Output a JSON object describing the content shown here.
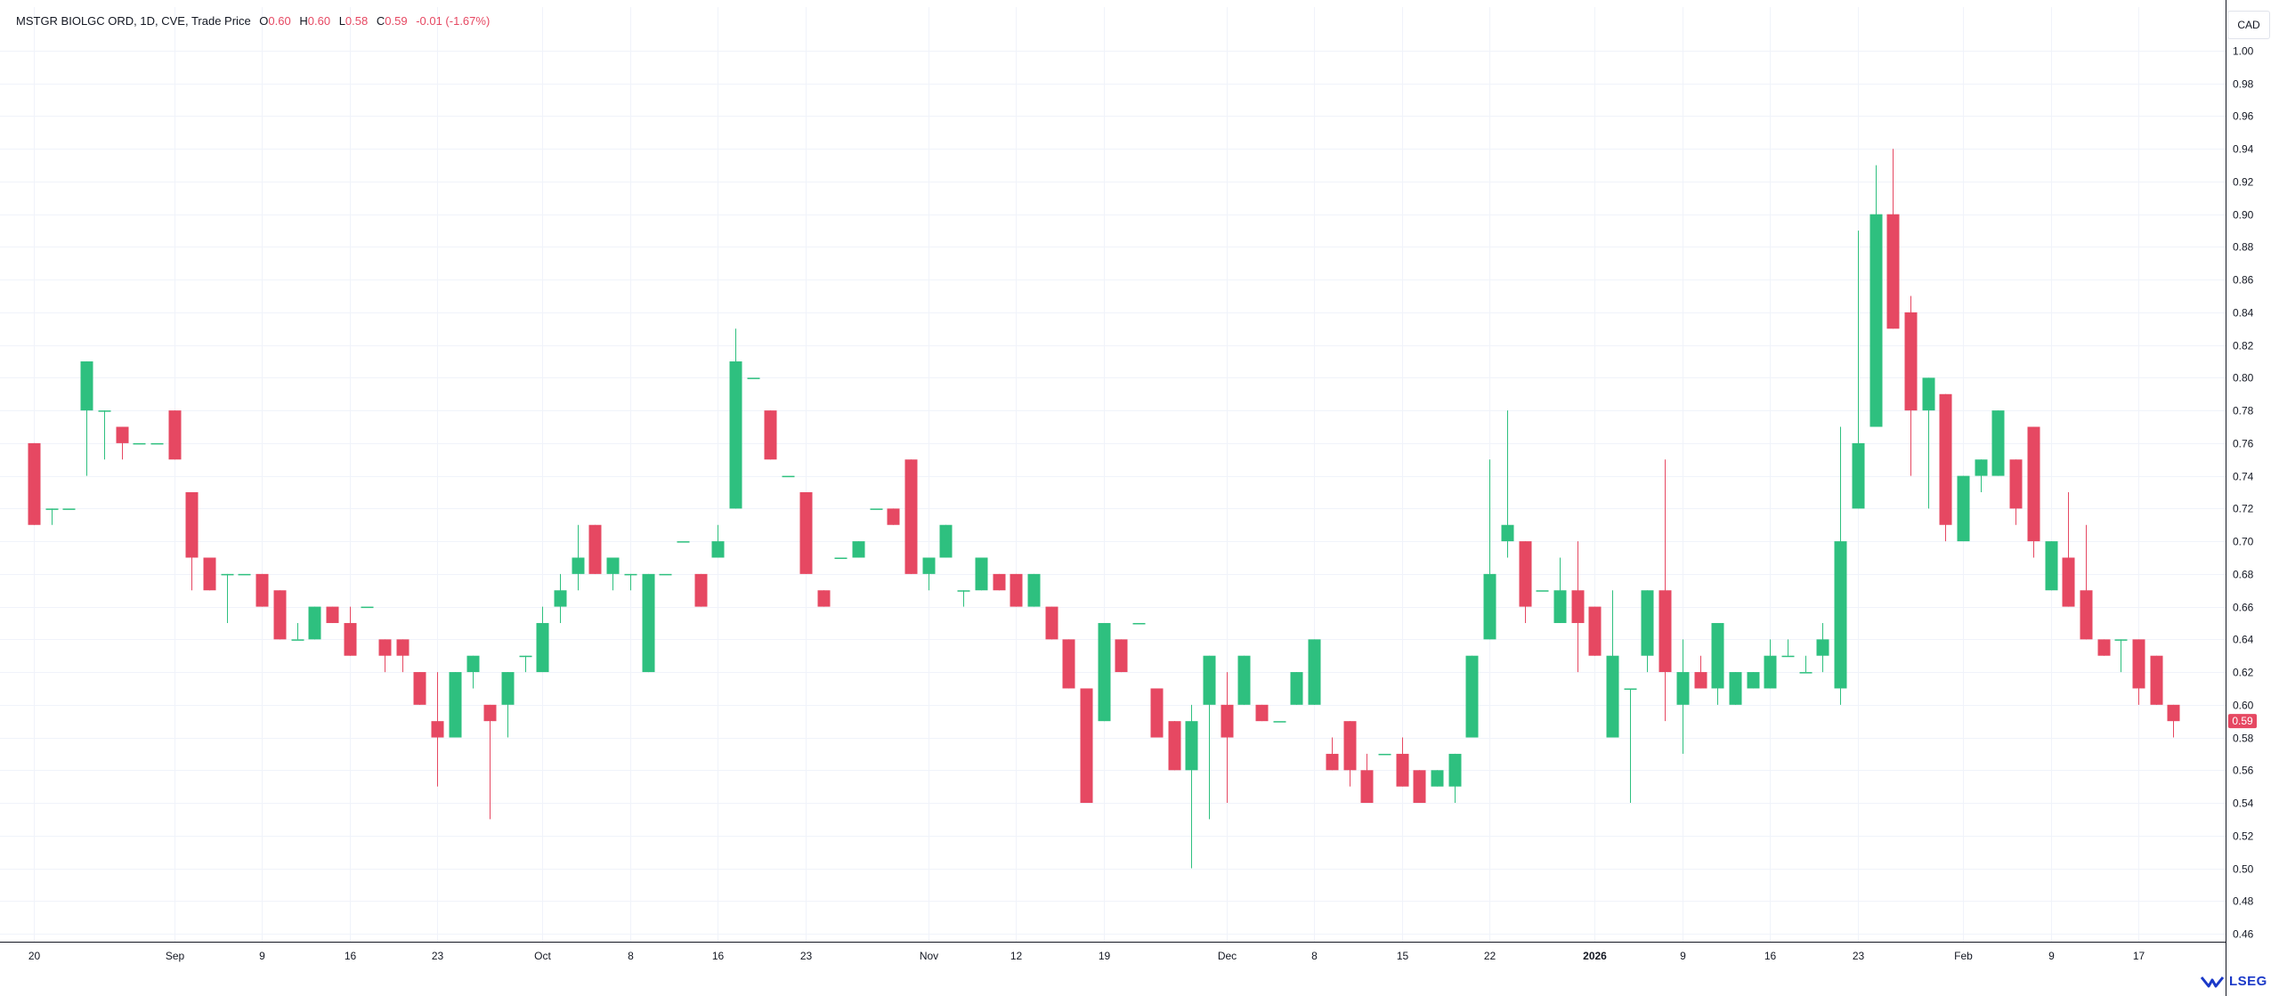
{
  "legend": {
    "symbol": "MSTGR BIOLGC ORD, 1D, CVE, Trade Price",
    "open_label": "O",
    "open": "0.60",
    "high_label": "H",
    "high": "0.60",
    "low_label": "L",
    "low": "0.58",
    "close_label": "C",
    "close": "0.59",
    "change": "-0.01 (-1.67%)"
  },
  "currency": "CAD",
  "brand": "LSEG",
  "last_price_label": "0.59",
  "colors": {
    "up": "#2ec07f",
    "down": "#e64862",
    "grid": "#f0f3fa",
    "axis": "#131722",
    "last": "#e64862"
  },
  "chart_data": {
    "type": "candlestick",
    "title": "MSTGR BIOLGC ORD, 1D, CVE, Trade Price",
    "ylim": [
      0.45,
      1.01
    ],
    "y_ticks": [
      "1.00",
      "0.98",
      "0.96",
      "0.94",
      "0.92",
      "0.90",
      "0.88",
      "0.86",
      "0.84",
      "0.82",
      "0.80",
      "0.78",
      "0.76",
      "0.74",
      "0.72",
      "0.70",
      "0.68",
      "0.66",
      "0.64",
      "0.62",
      "0.60",
      "0.58",
      "0.56",
      "0.54",
      "0.52",
      "0.50",
      "0.48",
      "0.46"
    ],
    "x_ticks": [
      {
        "label": "20",
        "bar": 0,
        "bold": false
      },
      {
        "label": "Sep",
        "bar": 8,
        "bold": false
      },
      {
        "label": "9",
        "bar": 13,
        "bold": false
      },
      {
        "label": "16",
        "bar": 18,
        "bold": false
      },
      {
        "label": "23",
        "bar": 23,
        "bold": false
      },
      {
        "label": "Oct",
        "bar": 29,
        "bold": false
      },
      {
        "label": "8",
        "bar": 34,
        "bold": false
      },
      {
        "label": "16",
        "bar": 39,
        "bold": false
      },
      {
        "label": "23",
        "bar": 44,
        "bold": false
      },
      {
        "label": "Nov",
        "bar": 51,
        "bold": false
      },
      {
        "label": "12",
        "bar": 56,
        "bold": false
      },
      {
        "label": "19",
        "bar": 61,
        "bold": false
      },
      {
        "label": "Dec",
        "bar": 68,
        "bold": false
      },
      {
        "label": "8",
        "bar": 73,
        "bold": false
      },
      {
        "label": "15",
        "bar": 78,
        "bold": false
      },
      {
        "label": "22",
        "bar": 83,
        "bold": false
      },
      {
        "label": "2026",
        "bar": 89,
        "bold": true
      },
      {
        "label": "9",
        "bar": 94,
        "bold": false
      },
      {
        "label": "16",
        "bar": 99,
        "bold": false
      },
      {
        "label": "23",
        "bar": 104,
        "bold": false
      },
      {
        "label": "Feb",
        "bar": 110,
        "bold": false
      },
      {
        "label": "9",
        "bar": 115,
        "bold": false
      },
      {
        "label": "17",
        "bar": 120,
        "bold": false
      }
    ],
    "candles": [
      {
        "o": 0.76,
        "h": 0.76,
        "l": 0.71,
        "c": 0.71
      },
      {
        "o": 0.72,
        "h": 0.72,
        "l": 0.71,
        "c": 0.72
      },
      {
        "o": 0.72,
        "h": 0.72,
        "l": 0.72,
        "c": 0.72
      },
      {
        "o": 0.78,
        "h": 0.81,
        "l": 0.74,
        "c": 0.81
      },
      {
        "o": 0.78,
        "h": 0.78,
        "l": 0.75,
        "c": 0.78
      },
      {
        "o": 0.77,
        "h": 0.77,
        "l": 0.75,
        "c": 0.76
      },
      {
        "o": 0.76,
        "h": 0.76,
        "l": 0.76,
        "c": 0.76
      },
      {
        "o": 0.76,
        "h": 0.76,
        "l": 0.76,
        "c": 0.76
      },
      {
        "o": 0.78,
        "h": 0.78,
        "l": 0.75,
        "c": 0.75
      },
      {
        "o": 0.73,
        "h": 0.73,
        "l": 0.67,
        "c": 0.69
      },
      {
        "o": 0.69,
        "h": 0.69,
        "l": 0.67,
        "c": 0.67
      },
      {
        "o": 0.68,
        "h": 0.68,
        "l": 0.65,
        "c": 0.68
      },
      {
        "o": 0.68,
        "h": 0.68,
        "l": 0.68,
        "c": 0.68
      },
      {
        "o": 0.68,
        "h": 0.68,
        "l": 0.66,
        "c": 0.66
      },
      {
        "o": 0.67,
        "h": 0.67,
        "l": 0.64,
        "c": 0.64
      },
      {
        "o": 0.64,
        "h": 0.65,
        "l": 0.64,
        "c": 0.64
      },
      {
        "o": 0.64,
        "h": 0.66,
        "l": 0.64,
        "c": 0.66
      },
      {
        "o": 0.66,
        "h": 0.66,
        "l": 0.65,
        "c": 0.65
      },
      {
        "o": 0.65,
        "h": 0.66,
        "l": 0.63,
        "c": 0.63
      },
      {
        "o": 0.66,
        "h": 0.66,
        "l": 0.66,
        "c": 0.66
      },
      {
        "o": 0.64,
        "h": 0.64,
        "l": 0.62,
        "c": 0.63
      },
      {
        "o": 0.64,
        "h": 0.64,
        "l": 0.62,
        "c": 0.63
      },
      {
        "o": 0.62,
        "h": 0.62,
        "l": 0.6,
        "c": 0.6
      },
      {
        "o": 0.59,
        "h": 0.62,
        "l": 0.55,
        "c": 0.58
      },
      {
        "o": 0.58,
        "h": 0.62,
        "l": 0.58,
        "c": 0.62
      },
      {
        "o": 0.62,
        "h": 0.63,
        "l": 0.61,
        "c": 0.63
      },
      {
        "o": 0.6,
        "h": 0.6,
        "l": 0.53,
        "c": 0.59
      },
      {
        "o": 0.6,
        "h": 0.62,
        "l": 0.58,
        "c": 0.62
      },
      {
        "o": 0.63,
        "h": 0.63,
        "l": 0.62,
        "c": 0.63
      },
      {
        "o": 0.62,
        "h": 0.66,
        "l": 0.62,
        "c": 0.65
      },
      {
        "o": 0.66,
        "h": 0.68,
        "l": 0.65,
        "c": 0.67
      },
      {
        "o": 0.68,
        "h": 0.71,
        "l": 0.67,
        "c": 0.69
      },
      {
        "o": 0.71,
        "h": 0.71,
        "l": 0.68,
        "c": 0.68
      },
      {
        "o": 0.68,
        "h": 0.69,
        "l": 0.67,
        "c": 0.69
      },
      {
        "o": 0.68,
        "h": 0.68,
        "l": 0.67,
        "c": 0.68
      },
      {
        "o": 0.62,
        "h": 0.68,
        "l": 0.62,
        "c": 0.68
      },
      {
        "o": 0.68,
        "h": 0.68,
        "l": 0.68,
        "c": 0.68
      },
      {
        "o": 0.7,
        "h": 0.7,
        "l": 0.7,
        "c": 0.7
      },
      {
        "o": 0.68,
        "h": 0.68,
        "l": 0.66,
        "c": 0.66
      },
      {
        "o": 0.69,
        "h": 0.71,
        "l": 0.69,
        "c": 0.7
      },
      {
        "o": 0.72,
        "h": 0.83,
        "l": 0.72,
        "c": 0.81
      },
      {
        "o": 0.8,
        "h": 0.8,
        "l": 0.8,
        "c": 0.8
      },
      {
        "o": 0.78,
        "h": 0.78,
        "l": 0.75,
        "c": 0.75
      },
      {
        "o": 0.74,
        "h": 0.74,
        "l": 0.74,
        "c": 0.74
      },
      {
        "o": 0.73,
        "h": 0.73,
        "l": 0.68,
        "c": 0.68
      },
      {
        "o": 0.67,
        "h": 0.67,
        "l": 0.66,
        "c": 0.66
      },
      {
        "o": 0.69,
        "h": 0.69,
        "l": 0.69,
        "c": 0.69
      },
      {
        "o": 0.69,
        "h": 0.7,
        "l": 0.69,
        "c": 0.7
      },
      {
        "o": 0.72,
        "h": 0.72,
        "l": 0.72,
        "c": 0.72
      },
      {
        "o": 0.72,
        "h": 0.72,
        "l": 0.71,
        "c": 0.71
      },
      {
        "o": 0.75,
        "h": 0.75,
        "l": 0.68,
        "c": 0.68
      },
      {
        "o": 0.68,
        "h": 0.69,
        "l": 0.67,
        "c": 0.69
      },
      {
        "o": 0.69,
        "h": 0.71,
        "l": 0.69,
        "c": 0.71
      },
      {
        "o": 0.67,
        "h": 0.67,
        "l": 0.66,
        "c": 0.67
      },
      {
        "o": 0.67,
        "h": 0.69,
        "l": 0.67,
        "c": 0.69
      },
      {
        "o": 0.68,
        "h": 0.68,
        "l": 0.67,
        "c": 0.67
      },
      {
        "o": 0.68,
        "h": 0.68,
        "l": 0.66,
        "c": 0.66
      },
      {
        "o": 0.66,
        "h": 0.68,
        "l": 0.66,
        "c": 0.68
      },
      {
        "o": 0.66,
        "h": 0.66,
        "l": 0.64,
        "c": 0.64
      },
      {
        "o": 0.64,
        "h": 0.64,
        "l": 0.61,
        "c": 0.61
      },
      {
        "o": 0.61,
        "h": 0.61,
        "l": 0.54,
        "c": 0.54
      },
      {
        "o": 0.59,
        "h": 0.65,
        "l": 0.59,
        "c": 0.65
      },
      {
        "o": 0.64,
        "h": 0.64,
        "l": 0.62,
        "c": 0.62
      },
      {
        "o": 0.65,
        "h": 0.65,
        "l": 0.65,
        "c": 0.65
      },
      {
        "o": 0.61,
        "h": 0.61,
        "l": 0.58,
        "c": 0.58
      },
      {
        "o": 0.59,
        "h": 0.59,
        "l": 0.56,
        "c": 0.56
      },
      {
        "o": 0.56,
        "h": 0.6,
        "l": 0.5,
        "c": 0.59
      },
      {
        "o": 0.6,
        "h": 0.63,
        "l": 0.53,
        "c": 0.63
      },
      {
        "o": 0.6,
        "h": 0.62,
        "l": 0.54,
        "c": 0.58
      },
      {
        "o": 0.6,
        "h": 0.63,
        "l": 0.6,
        "c": 0.63
      },
      {
        "o": 0.6,
        "h": 0.6,
        "l": 0.59,
        "c": 0.59
      },
      {
        "o": 0.59,
        "h": 0.59,
        "l": 0.59,
        "c": 0.59
      },
      {
        "o": 0.6,
        "h": 0.62,
        "l": 0.6,
        "c": 0.62
      },
      {
        "o": 0.6,
        "h": 0.64,
        "l": 0.6,
        "c": 0.64
      },
      {
        "o": 0.57,
        "h": 0.58,
        "l": 0.56,
        "c": 0.56
      },
      {
        "o": 0.59,
        "h": 0.59,
        "l": 0.55,
        "c": 0.56
      },
      {
        "o": 0.56,
        "h": 0.57,
        "l": 0.54,
        "c": 0.54
      },
      {
        "o": 0.57,
        "h": 0.57,
        "l": 0.57,
        "c": 0.57
      },
      {
        "o": 0.57,
        "h": 0.58,
        "l": 0.55,
        "c": 0.55
      },
      {
        "o": 0.56,
        "h": 0.56,
        "l": 0.54,
        "c": 0.54
      },
      {
        "o": 0.55,
        "h": 0.56,
        "l": 0.55,
        "c": 0.56
      },
      {
        "o": 0.55,
        "h": 0.57,
        "l": 0.54,
        "c": 0.57
      },
      {
        "o": 0.58,
        "h": 0.63,
        "l": 0.58,
        "c": 0.63
      },
      {
        "o": 0.64,
        "h": 0.75,
        "l": 0.64,
        "c": 0.68
      },
      {
        "o": 0.7,
        "h": 0.78,
        "l": 0.69,
        "c": 0.71
      },
      {
        "o": 0.7,
        "h": 0.7,
        "l": 0.65,
        "c": 0.66
      },
      {
        "o": 0.67,
        "h": 0.67,
        "l": 0.67,
        "c": 0.67
      },
      {
        "o": 0.65,
        "h": 0.69,
        "l": 0.65,
        "c": 0.67
      },
      {
        "o": 0.67,
        "h": 0.7,
        "l": 0.62,
        "c": 0.65
      },
      {
        "o": 0.66,
        "h": 0.66,
        "l": 0.63,
        "c": 0.63
      },
      {
        "o": 0.58,
        "h": 0.67,
        "l": 0.58,
        "c": 0.63
      },
      {
        "o": 0.61,
        "h": 0.61,
        "l": 0.54,
        "c": 0.61
      },
      {
        "o": 0.63,
        "h": 0.67,
        "l": 0.62,
        "c": 0.67
      },
      {
        "o": 0.67,
        "h": 0.75,
        "l": 0.59,
        "c": 0.62
      },
      {
        "o": 0.6,
        "h": 0.64,
        "l": 0.57,
        "c": 0.62
      },
      {
        "o": 0.62,
        "h": 0.63,
        "l": 0.61,
        "c": 0.61
      },
      {
        "o": 0.61,
        "h": 0.65,
        "l": 0.6,
        "c": 0.65
      },
      {
        "o": 0.6,
        "h": 0.62,
        "l": 0.6,
        "c": 0.62
      },
      {
        "o": 0.61,
        "h": 0.62,
        "l": 0.61,
        "c": 0.62
      },
      {
        "o": 0.61,
        "h": 0.64,
        "l": 0.61,
        "c": 0.63
      },
      {
        "o": 0.63,
        "h": 0.64,
        "l": 0.63,
        "c": 0.63
      },
      {
        "o": 0.62,
        "h": 0.63,
        "l": 0.62,
        "c": 0.62
      },
      {
        "o": 0.63,
        "h": 0.65,
        "l": 0.62,
        "c": 0.64
      },
      {
        "o": 0.61,
        "h": 0.77,
        "l": 0.6,
        "c": 0.7
      },
      {
        "o": 0.72,
        "h": 0.89,
        "l": 0.72,
        "c": 0.76
      },
      {
        "o": 0.77,
        "h": 0.93,
        "l": 0.77,
        "c": 0.9
      },
      {
        "o": 0.9,
        "h": 0.94,
        "l": 0.83,
        "c": 0.83
      },
      {
        "o": 0.84,
        "h": 0.85,
        "l": 0.74,
        "c": 0.78
      },
      {
        "o": 0.78,
        "h": 0.8,
        "l": 0.72,
        "c": 0.8
      },
      {
        "o": 0.79,
        "h": 0.79,
        "l": 0.7,
        "c": 0.71
      },
      {
        "o": 0.7,
        "h": 0.74,
        "l": 0.7,
        "c": 0.74
      },
      {
        "o": 0.74,
        "h": 0.75,
        "l": 0.73,
        "c": 0.75
      },
      {
        "o": 0.74,
        "h": 0.78,
        "l": 0.74,
        "c": 0.78
      },
      {
        "o": 0.75,
        "h": 0.75,
        "l": 0.71,
        "c": 0.72
      },
      {
        "o": 0.77,
        "h": 0.77,
        "l": 0.69,
        "c": 0.7
      },
      {
        "o": 0.67,
        "h": 0.7,
        "l": 0.67,
        "c": 0.7
      },
      {
        "o": 0.69,
        "h": 0.73,
        "l": 0.66,
        "c": 0.66
      },
      {
        "o": 0.67,
        "h": 0.71,
        "l": 0.64,
        "c": 0.64
      },
      {
        "o": 0.64,
        "h": 0.64,
        "l": 0.63,
        "c": 0.63
      },
      {
        "o": 0.64,
        "h": 0.64,
        "l": 0.62,
        "c": 0.64
      },
      {
        "o": 0.64,
        "h": 0.64,
        "l": 0.6,
        "c": 0.61
      },
      {
        "o": 0.63,
        "h": 0.63,
        "l": 0.6,
        "c": 0.6
      },
      {
        "o": 0.6,
        "h": 0.6,
        "l": 0.58,
        "c": 0.59
      }
    ]
  }
}
